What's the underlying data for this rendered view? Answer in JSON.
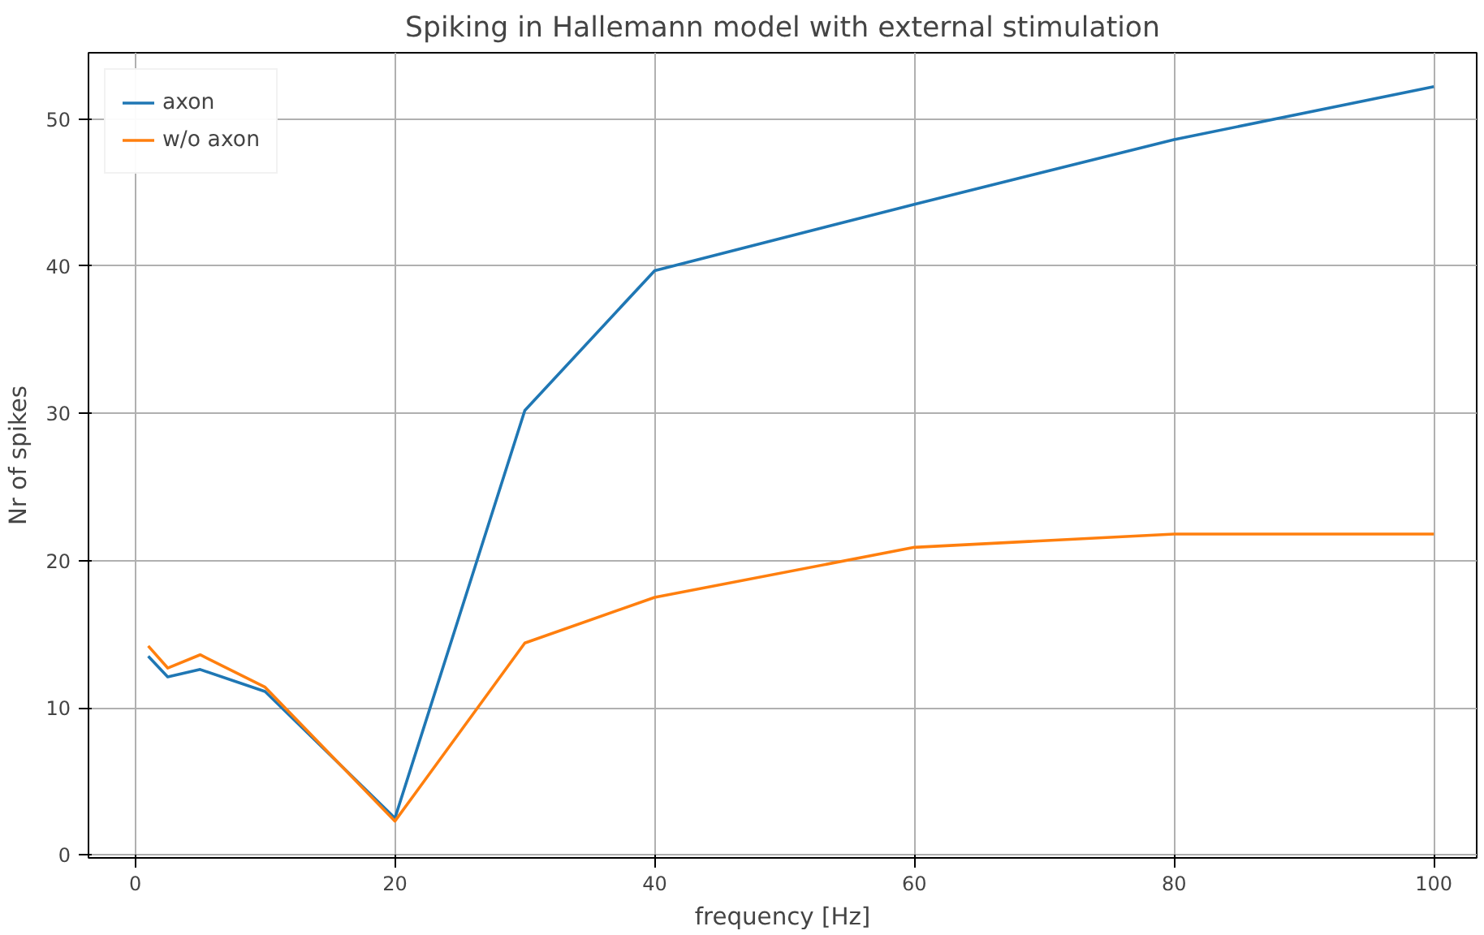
{
  "chart_data": {
    "type": "line",
    "title": "Spiking in Hallemann model with external stimulation",
    "xlabel": "frequency [Hz]",
    "ylabel": "Nr of spikes",
    "x": [
      1,
      2.5,
      5,
      10,
      20,
      30,
      40,
      60,
      80,
      100
    ],
    "series": [
      {
        "name": "axon",
        "color": "#1f77b4",
        "values": [
          13.5,
          12.1,
          12.6,
          11.1,
          2.5,
          30.2,
          39.7,
          44.2,
          48.6,
          52.2
        ]
      },
      {
        "name": "w/o axon",
        "color": "#ff7f0e",
        "values": [
          14.2,
          12.7,
          13.6,
          11.4,
          2.3,
          14.4,
          17.5,
          20.9,
          21.8,
          21.8
        ]
      }
    ],
    "xlim": [
      -3.6,
      103.3
    ],
    "ylim": [
      -0.2,
      54.5
    ],
    "xticks": [
      0,
      20,
      40,
      60,
      80,
      100
    ],
    "yticks": [
      0,
      10,
      20,
      30,
      40,
      50
    ],
    "grid": true,
    "legend": "top left",
    "line_style": "solid"
  }
}
